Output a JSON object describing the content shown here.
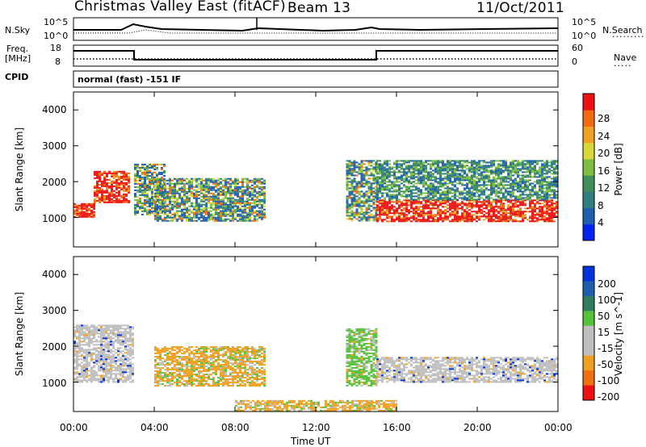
{
  "header": {
    "title": "Christmas Valley East (fitACF)",
    "beam": "Beam 13",
    "date": "11/Oct/2011"
  },
  "top_panels": {
    "noise_left_label": "N.Sky",
    "noise_right_label": "N.Search",
    "noise_left_ticks": [
      "10^5",
      "10^0"
    ],
    "noise_right_ticks": [
      "10^5",
      "10^0"
    ],
    "freq_label_line1": "Freq.",
    "freq_label_line2": "[MHz]",
    "freq_ticks": [
      "18",
      "8"
    ],
    "nave_label": "Nave",
    "nave_ticks": [
      "60",
      "0"
    ],
    "cpid_label": "CPID",
    "cpid_value": "normal (fast) -151 IF"
  },
  "colors": {
    "power_scale": [
      "#0022ee",
      "#1f5fb0",
      "#2f7f7f",
      "#3f8f5a",
      "#7fbf3f",
      "#d8d83a",
      "#f2a020",
      "#f36a10",
      "#ee1111"
    ],
    "velocity_scale": [
      "#0033dd",
      "#1f5fb0",
      "#2f7f5f",
      "#56c23a",
      "#bfbfbf",
      "#bfbfbf",
      "#f0a020",
      "#f07010",
      "#ee1111"
    ]
  },
  "chart_data": [
    {
      "type": "heatmap",
      "panel": "power",
      "ylabel": "Slant Range [km]",
      "ylim": [
        180,
        4500
      ],
      "yticks": [
        "1000",
        "2000",
        "3000",
        "4000"
      ],
      "xlim": [
        "00:00",
        "24:00"
      ],
      "colorbar": {
        "label": "Power [dB]",
        "range": [
          0,
          30
        ],
        "tick_labels": [
          "4",
          "8",
          "12",
          "16",
          "20",
          "24",
          "28"
        ]
      },
      "echo_regions": [
        {
          "t_start": "00:00",
          "t_end": "01:00",
          "range_km": [
            1000,
            1400
          ],
          "level": "high"
        },
        {
          "t_start": "01:00",
          "t_end": "02:45",
          "range_km": [
            1400,
            2300
          ],
          "level": "high"
        },
        {
          "t_start": "03:00",
          "t_end": "04:30",
          "range_km": [
            1100,
            2500
          ],
          "level": "medium"
        },
        {
          "t_start": "04:00",
          "t_end": "09:30",
          "range_km": [
            900,
            2100
          ],
          "level": "medium"
        },
        {
          "t_start": "13:30",
          "t_end": "15:00",
          "range_km": [
            900,
            2600
          ],
          "level": "medium"
        },
        {
          "t_start": "15:00",
          "t_end": "24:00",
          "range_km": [
            900,
            1500
          ],
          "level": "high"
        },
        {
          "t_start": "15:00",
          "t_end": "24:00",
          "range_km": [
            1500,
            2600
          ],
          "level": "low"
        }
      ]
    },
    {
      "type": "heatmap",
      "panel": "velocity",
      "ylabel": "Slant Range [km]",
      "xlabel": "Time UT",
      "ylim": [
        180,
        4500
      ],
      "yticks": [
        "1000",
        "2000",
        "3000",
        "4000"
      ],
      "xlim": [
        "00:00",
        "24:00"
      ],
      "xtick_labels": [
        "00:00",
        "04:00",
        "08:00",
        "12:00",
        "16:00",
        "20:00",
        "00:00"
      ],
      "colorbar": {
        "label": "Velocity [m s^-1]",
        "tick_labels": [
          "200",
          "100",
          "50",
          "15",
          "-15",
          "-50",
          "-100",
          "-200"
        ]
      },
      "echo_regions": [
        {
          "t_start": "00:00",
          "t_end": "03:00",
          "range_km": [
            1000,
            2600
          ],
          "velocity_class": "ground scatter"
        },
        {
          "t_start": "04:00",
          "t_end": "09:30",
          "range_km": [
            900,
            2000
          ],
          "velocity_class": "negative"
        },
        {
          "t_start": "13:30",
          "t_end": "15:00",
          "range_km": [
            900,
            2500
          ],
          "velocity_class": "positive"
        },
        {
          "t_start": "15:00",
          "t_end": "24:00",
          "range_km": [
            1000,
            1700
          ],
          "velocity_class": "ground scatter"
        },
        {
          "t_start": "08:00",
          "t_end": "16:00",
          "range_km": [
            200,
            500
          ],
          "velocity_class": "negative"
        }
      ]
    }
  ]
}
